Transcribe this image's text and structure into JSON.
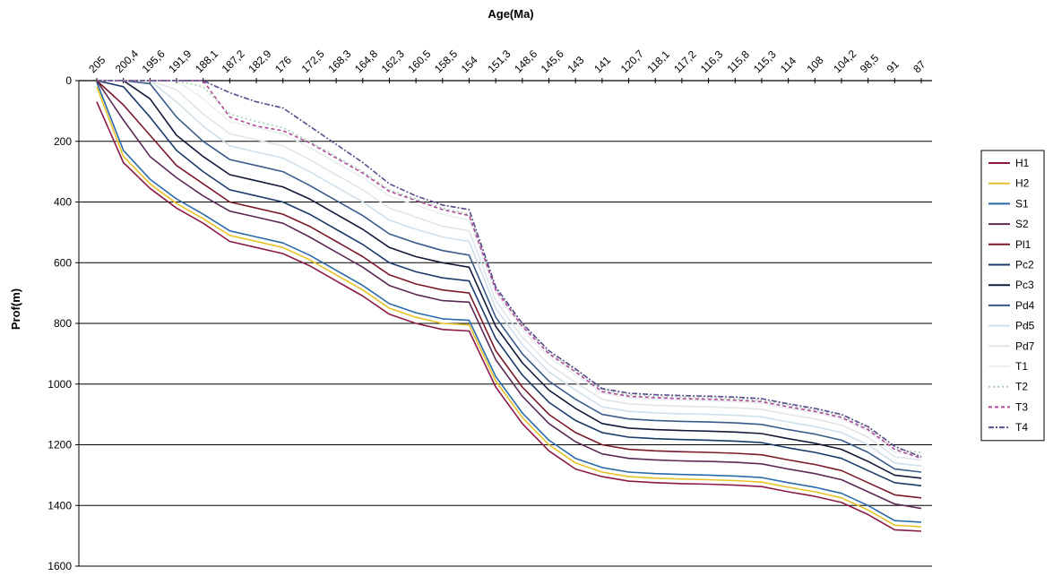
{
  "chart_data": {
    "type": "line",
    "xlabel": "Age(Ma)",
    "ylabel": "Prof(m)",
    "x_axis_position": "top",
    "y_inverted": true,
    "ylim": [
      0,
      1600
    ],
    "y_ticks": [
      0,
      200,
      400,
      600,
      800,
      1000,
      1200,
      1400,
      1600
    ],
    "grid": "horizontal",
    "legend_position": "right",
    "categories": [
      "205",
      "200,4",
      "195,6",
      "191,9",
      "188,1",
      "187,2",
      "182,9",
      "176",
      "172,5",
      "168,3",
      "164,8",
      "162,3",
      "160,5",
      "158,5",
      "154",
      "151,3",
      "148,6",
      "145,6",
      "143",
      "141",
      "120,7",
      "118,1",
      "117,2",
      "116,3",
      "115,8",
      "115,3",
      "114",
      "108",
      "104,2",
      "98,5",
      "91",
      "87"
    ],
    "series": [
      {
        "name": "H1",
        "color": "#8b1a4a",
        "dash": "",
        "values": [
          70,
          270,
          355,
          420,
          470,
          530,
          550,
          570,
          610,
          660,
          710,
          770,
          800,
          820,
          825,
          1010,
          1130,
          1220,
          1280,
          1305,
          1320,
          1325,
          1328,
          1330,
          1333,
          1338,
          1355,
          1370,
          1390,
          1430,
          1480,
          1485
        ]
      },
      {
        "name": "H2",
        "color": "#e6c228",
        "dash": "",
        "values": [
          20,
          250,
          340,
          405,
          455,
          510,
          530,
          550,
          590,
          640,
          690,
          750,
          780,
          800,
          805,
          990,
          1110,
          1200,
          1260,
          1290,
          1305,
          1310,
          1313,
          1315,
          1318,
          1323,
          1340,
          1355,
          1375,
          1415,
          1465,
          1470
        ]
      },
      {
        "name": "S1",
        "color": "#2a6aa8",
        "dash": "",
        "values": [
          5,
          230,
          325,
          390,
          440,
          495,
          515,
          535,
          575,
          625,
          675,
          735,
          765,
          785,
          790,
          975,
          1095,
          1185,
          1245,
          1275,
          1290,
          1295,
          1298,
          1300,
          1303,
          1308,
          1325,
          1340,
          1360,
          1400,
          1450,
          1455
        ]
      },
      {
        "name": "S2",
        "color": "#5a2a55",
        "dash": "",
        "values": [
          0,
          130,
          250,
          320,
          380,
          430,
          450,
          470,
          515,
          565,
          615,
          675,
          705,
          725,
          730,
          920,
          1040,
          1130,
          1190,
          1230,
          1245,
          1250,
          1253,
          1255,
          1258,
          1263,
          1280,
          1295,
          1315,
          1355,
          1395,
          1410
        ]
      },
      {
        "name": "Pl1",
        "color": "#7a1a2a",
        "dash": "",
        "values": [
          0,
          80,
          180,
          280,
          340,
          400,
          420,
          440,
          480,
          530,
          580,
          640,
          670,
          690,
          700,
          890,
          1010,
          1100,
          1160,
          1200,
          1215,
          1220,
          1223,
          1225,
          1228,
          1233,
          1250,
          1265,
          1285,
          1325,
          1365,
          1375
        ]
      },
      {
        "name": "Pc2",
        "color": "#1a3a6a",
        "dash": "",
        "values": [
          0,
          20,
          120,
          230,
          300,
          360,
          380,
          400,
          440,
          490,
          540,
          600,
          630,
          650,
          660,
          850,
          970,
          1060,
          1120,
          1160,
          1175,
          1180,
          1183,
          1185,
          1188,
          1193,
          1210,
          1225,
          1245,
          1285,
          1325,
          1335
        ]
      },
      {
        "name": "Pc3",
        "color": "#141a3a",
        "dash": "",
        "values": [
          0,
          0,
          60,
          180,
          250,
          310,
          330,
          350,
          390,
          440,
          490,
          550,
          580,
          600,
          615,
          810,
          930,
          1020,
          1080,
          1130,
          1145,
          1150,
          1153,
          1155,
          1158,
          1163,
          1180,
          1195,
          1215,
          1255,
          1300,
          1310
        ]
      },
      {
        "name": "Pd4",
        "color": "#3a5a8a",
        "dash": "",
        "values": [
          0,
          0,
          10,
          120,
          200,
          260,
          280,
          300,
          345,
          395,
          445,
          505,
          535,
          560,
          575,
          780,
          900,
          990,
          1050,
          1100,
          1115,
          1120,
          1123,
          1125,
          1128,
          1133,
          1150,
          1165,
          1185,
          1225,
          1280,
          1290
        ]
      },
      {
        "name": "Pd5",
        "color": "#cfe0ea",
        "dash": "",
        "values": [
          0,
          0,
          0,
          70,
          150,
          215,
          235,
          255,
          300,
          350,
          400,
          460,
          490,
          515,
          530,
          750,
          870,
          960,
          1020,
          1075,
          1090,
          1095,
          1098,
          1100,
          1103,
          1108,
          1125,
          1140,
          1160,
          1200,
          1260,
          1270
        ]
      },
      {
        "name": "Pd7",
        "color": "#dfe6ea",
        "dash": "",
        "values": [
          0,
          0,
          0,
          30,
          110,
          175,
          195,
          215,
          260,
          310,
          360,
          420,
          450,
          480,
          495,
          725,
          845,
          935,
          995,
          1050,
          1065,
          1070,
          1073,
          1075,
          1078,
          1083,
          1100,
          1115,
          1135,
          1175,
          1240,
          1250
        ]
      },
      {
        "name": "T1",
        "color": "#e9eef0",
        "dash": "",
        "values": [
          0,
          0,
          0,
          0,
          60,
          135,
          155,
          175,
          220,
          270,
          320,
          380,
          410,
          440,
          460,
          700,
          820,
          910,
          970,
          1030,
          1045,
          1050,
          1053,
          1055,
          1058,
          1063,
          1080,
          1095,
          1115,
          1155,
          1225,
          1235
        ]
      },
      {
        "name": "T2",
        "color": "#a8cfb5",
        "dash": "2 3",
        "values": [
          0,
          0,
          0,
          0,
          20,
          110,
          135,
          155,
          200,
          250,
          300,
          360,
          390,
          420,
          440,
          685,
          805,
          895,
          955,
          1020,
          1035,
          1040,
          1043,
          1045,
          1048,
          1053,
          1070,
          1085,
          1105,
          1145,
          1215,
          1225
        ]
      },
      {
        "name": "T3",
        "color": "#b04a9a",
        "dash": "4 3",
        "values": [
          0,
          0,
          0,
          0,
          0,
          120,
          150,
          165,
          205,
          255,
          305,
          365,
          395,
          425,
          445,
          690,
          810,
          900,
          960,
          1025,
          1040,
          1045,
          1048,
          1050,
          1053,
          1058,
          1075,
          1090,
          1110,
          1150,
          1215,
          1245
        ]
      },
      {
        "name": "T4",
        "color": "#5a4a8a",
        "dash": "6 2 2 2",
        "values": [
          0,
          0,
          0,
          0,
          0,
          40,
          70,
          90,
          150,
          210,
          270,
          340,
          380,
          410,
          425,
          680,
          800,
          890,
          950,
          1015,
          1030,
          1035,
          1038,
          1040,
          1043,
          1048,
          1065,
          1080,
          1100,
          1140,
          1205,
          1240
        ]
      }
    ]
  }
}
